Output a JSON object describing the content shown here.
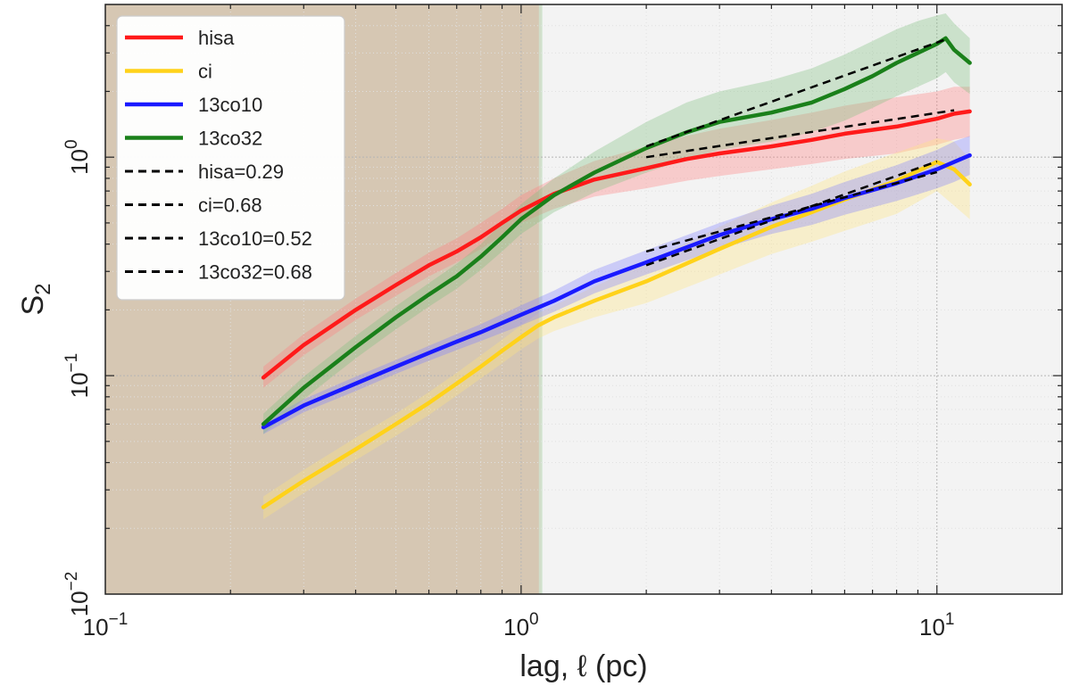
{
  "chart_data": {
    "type": "line",
    "scale": {
      "x": "log",
      "y": "log"
    },
    "xlim": [
      0.1,
      20
    ],
    "ylim": [
      0.01,
      5
    ],
    "xlabel_text": "lag, ℓ (pc)",
    "ylabel_main": "S",
    "ylabel_sub": "2",
    "x_ticks": [
      {
        "value": 0.1,
        "base": "10",
        "exp": "−1"
      },
      {
        "value": 1,
        "base": "10",
        "exp": "0"
      },
      {
        "value": 10,
        "base": "10",
        "exp": "1"
      }
    ],
    "y_ticks": [
      {
        "value": 0.01,
        "base": "10",
        "exp": "−2"
      },
      {
        "value": 0.1,
        "base": "10",
        "exp": "−1"
      },
      {
        "value": 1,
        "base": "10",
        "exp": "0"
      }
    ],
    "shaded_region": {
      "x": [
        0.1,
        1.12
      ],
      "color": "#d6c7b3"
    },
    "right_region_color": "#f3f3f3",
    "series": [
      {
        "name": "hisa",
        "color": "#ff1a1a",
        "band_color": "#ff8080",
        "x": [
          0.24,
          0.3,
          0.4,
          0.5,
          0.6,
          0.7,
          0.8,
          0.9,
          1.0,
          1.2,
          1.5,
          2.0,
          2.5,
          3,
          4,
          5,
          6,
          8,
          10,
          11,
          12
        ],
        "y": [
          0.098,
          0.138,
          0.2,
          0.26,
          0.32,
          0.37,
          0.43,
          0.5,
          0.57,
          0.68,
          0.79,
          0.89,
          0.98,
          1.04,
          1.12,
          1.2,
          1.28,
          1.38,
          1.5,
          1.58,
          1.62
        ],
        "upper": [
          0.11,
          0.155,
          0.225,
          0.295,
          0.365,
          0.425,
          0.5,
          0.58,
          0.67,
          0.8,
          0.96,
          1.12,
          1.25,
          1.35,
          1.48,
          1.6,
          1.72,
          1.88,
          2.0,
          2.1,
          2.1
        ],
        "lower": [
          0.088,
          0.124,
          0.18,
          0.232,
          0.285,
          0.33,
          0.38,
          0.44,
          0.5,
          0.58,
          0.66,
          0.72,
          0.78,
          0.82,
          0.88,
          0.93,
          0.98,
          1.04,
          1.14,
          1.2,
          1.24
        ]
      },
      {
        "name": "ci",
        "color": "#ffd21a",
        "band_color": "#ffe680",
        "x": [
          0.24,
          0.3,
          0.4,
          0.5,
          0.6,
          0.7,
          0.8,
          0.9,
          1.0,
          1.1,
          1.2,
          1.5,
          2.0,
          3,
          4,
          5,
          6,
          8,
          10,
          11,
          12
        ],
        "y": [
          0.025,
          0.033,
          0.046,
          0.06,
          0.075,
          0.092,
          0.11,
          0.13,
          0.15,
          0.17,
          0.185,
          0.22,
          0.27,
          0.38,
          0.48,
          0.56,
          0.64,
          0.78,
          0.95,
          0.88,
          0.75
        ],
        "upper": [
          0.028,
          0.037,
          0.052,
          0.067,
          0.084,
          0.103,
          0.124,
          0.146,
          0.17,
          0.193,
          0.21,
          0.255,
          0.33,
          0.48,
          0.62,
          0.74,
          0.86,
          1.05,
          1.22,
          1.18,
          0.98
        ],
        "lower": [
          0.022,
          0.029,
          0.041,
          0.053,
          0.066,
          0.081,
          0.097,
          0.114,
          0.132,
          0.148,
          0.16,
          0.185,
          0.215,
          0.29,
          0.36,
          0.41,
          0.46,
          0.55,
          0.7,
          0.6,
          0.52
        ]
      },
      {
        "name": "13co10",
        "color": "#1a1aff",
        "band_color": "#8080ff",
        "x": [
          0.24,
          0.3,
          0.4,
          0.5,
          0.6,
          0.7,
          0.8,
          1.0,
          1.2,
          1.5,
          2.0,
          3,
          4,
          5,
          6,
          8,
          10,
          11,
          12
        ],
        "y": [
          0.058,
          0.073,
          0.092,
          0.11,
          0.127,
          0.143,
          0.158,
          0.19,
          0.22,
          0.27,
          0.33,
          0.44,
          0.52,
          0.58,
          0.65,
          0.76,
          0.88,
          0.95,
          1.02
        ],
        "upper": [
          0.062,
          0.078,
          0.099,
          0.118,
          0.137,
          0.155,
          0.172,
          0.21,
          0.245,
          0.305,
          0.375,
          0.5,
          0.6,
          0.68,
          0.77,
          0.92,
          1.08,
          1.18,
          1.25
        ],
        "lower": [
          0.054,
          0.068,
          0.085,
          0.102,
          0.117,
          0.131,
          0.144,
          0.17,
          0.196,
          0.238,
          0.29,
          0.38,
          0.445,
          0.49,
          0.545,
          0.63,
          0.72,
          0.77,
          0.83
        ]
      },
      {
        "name": "13co32",
        "color": "#1a801a",
        "band_color": "#80c080",
        "x": [
          0.24,
          0.3,
          0.4,
          0.5,
          0.6,
          0.7,
          0.8,
          0.9,
          1.0,
          1.2,
          1.5,
          2.0,
          2.5,
          3,
          4,
          5,
          6,
          7,
          8,
          9,
          10,
          10.5,
          11,
          12
        ],
        "y": [
          0.06,
          0.088,
          0.135,
          0.185,
          0.235,
          0.285,
          0.35,
          0.43,
          0.52,
          0.67,
          0.85,
          1.1,
          1.3,
          1.45,
          1.6,
          1.78,
          2.05,
          2.35,
          2.7,
          3.0,
          3.3,
          3.5,
          3.1,
          2.7
        ],
        "upper": [
          0.067,
          0.099,
          0.152,
          0.208,
          0.265,
          0.325,
          0.4,
          0.5,
          0.61,
          0.8,
          1.06,
          1.45,
          1.78,
          2.0,
          2.25,
          2.55,
          2.95,
          3.4,
          3.85,
          4.2,
          4.45,
          4.55,
          4.1,
          3.5
        ],
        "lower": [
          0.054,
          0.078,
          0.12,
          0.163,
          0.207,
          0.25,
          0.305,
          0.37,
          0.445,
          0.56,
          0.69,
          0.85,
          0.98,
          1.08,
          1.18,
          1.3,
          1.47,
          1.68,
          1.9,
          2.1,
          2.3,
          2.45,
          2.2,
          1.95
        ]
      }
    ],
    "fits": [
      {
        "name": "hisa=0.29",
        "slope": 0.29,
        "x": [
          2.0,
          11.0
        ],
        "y_start": 1.0
      },
      {
        "name": "ci=0.68",
        "slope": 0.68,
        "x": [
          2.0,
          10.0
        ],
        "y_start": 0.32
      },
      {
        "name": "13co10=0.52",
        "slope": 0.52,
        "x": [
          2.0,
          10.0
        ],
        "y_start": 0.37
      },
      {
        "name": "13co32=0.68",
        "slope": 0.68,
        "x": [
          2.0,
          10.5
        ],
        "y_start": 1.12
      }
    ],
    "fit_color": "#000000",
    "legend_position": "top-left",
    "grid": true
  }
}
